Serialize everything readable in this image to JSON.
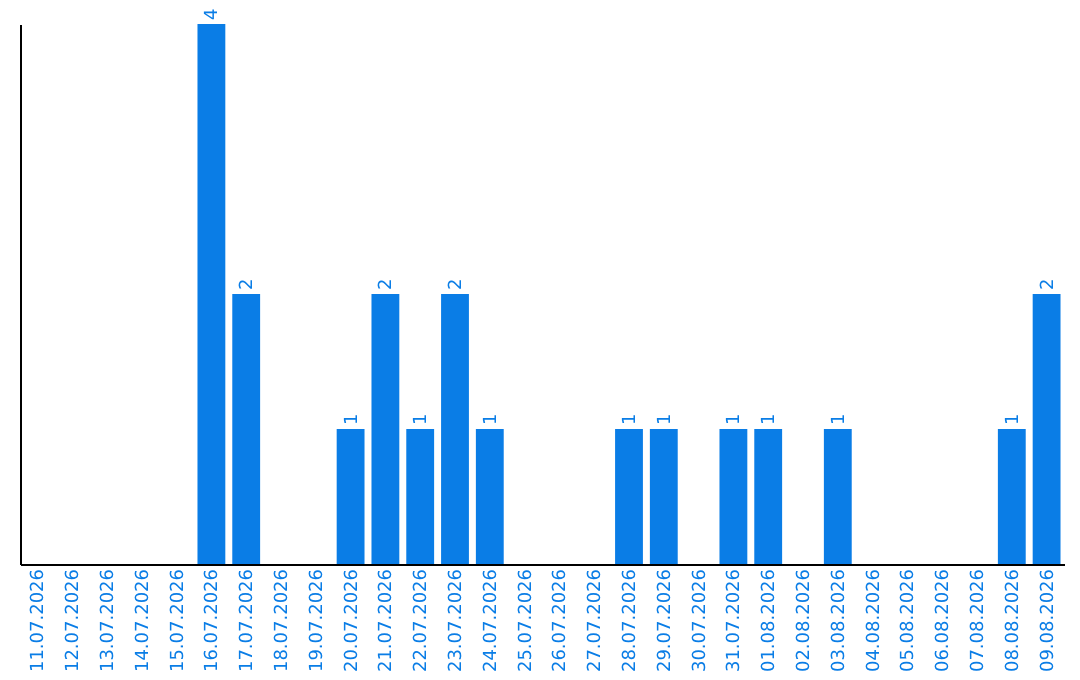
{
  "chart_data": {
    "type": "bar",
    "categories": [
      "11.07.2026",
      "12.07.2026",
      "13.07.2026",
      "14.07.2026",
      "15.07.2026",
      "16.07.2026",
      "17.07.2026",
      "18.07.2026",
      "19.07.2026",
      "20.07.2026",
      "21.07.2026",
      "22.07.2026",
      "23.07.2026",
      "24.07.2026",
      "25.07.2026",
      "26.07.2026",
      "27.07.2026",
      "28.07.2026",
      "29.07.2026",
      "30.07.2026",
      "31.07.2026",
      "01.08.2026",
      "02.08.2026",
      "03.08.2026",
      "04.08.2026",
      "05.08.2026",
      "06.08.2026",
      "07.08.2026",
      "08.08.2026",
      "09.08.2026"
    ],
    "values": [
      0,
      0,
      0,
      0,
      0,
      4,
      2,
      0,
      0,
      1,
      2,
      1,
      2,
      1,
      0,
      0,
      0,
      1,
      1,
      0,
      1,
      1,
      0,
      1,
      0,
      0,
      0,
      0,
      1,
      2
    ],
    "value_labels": [
      null,
      null,
      null,
      null,
      null,
      "4",
      "2",
      null,
      null,
      "1",
      "2",
      "1",
      "2",
      "1",
      null,
      null,
      null,
      "1",
      "1",
      null,
      "1",
      "1",
      null,
      "1",
      null,
      null,
      null,
      null,
      "1",
      "2"
    ],
    "color": "#0a7de6",
    "tick_labels": "x"
  }
}
